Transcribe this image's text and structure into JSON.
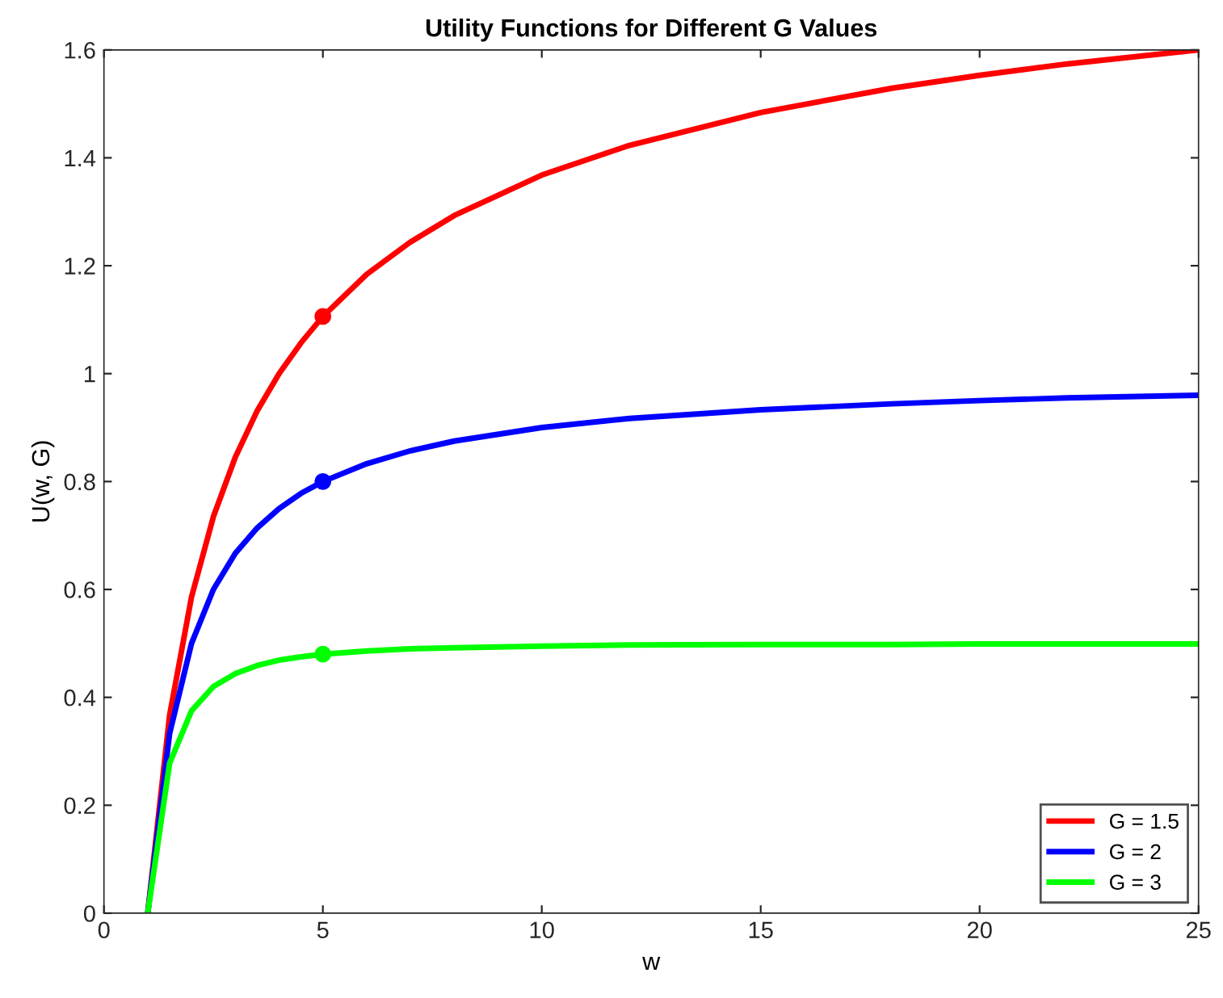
{
  "chart_data": {
    "type": "line",
    "title": "Utility Functions for Different G Values",
    "xlabel": "w",
    "ylabel": "U(w, G)",
    "x": [
      1,
      1.5,
      2,
      2.5,
      3,
      3.5,
      4,
      4.5,
      5,
      6,
      7,
      8,
      10,
      12,
      15,
      18,
      20,
      22,
      25
    ],
    "series": [
      {
        "name": "G = 1.5",
        "color": "#ff0000",
        "values": [
          0,
          0.367,
          0.586,
          0.735,
          0.845,
          0.931,
          1.0,
          1.057,
          1.106,
          1.184,
          1.244,
          1.293,
          1.368,
          1.423,
          1.484,
          1.529,
          1.553,
          1.574,
          1.6
        ]
      },
      {
        "name": "G = 2",
        "color": "#0000ff",
        "values": [
          0,
          0.333,
          0.5,
          0.6,
          0.667,
          0.714,
          0.75,
          0.778,
          0.8,
          0.833,
          0.857,
          0.875,
          0.9,
          0.917,
          0.933,
          0.944,
          0.95,
          0.955,
          0.96
        ]
      },
      {
        "name": "G = 3",
        "color": "#00ff00",
        "values": [
          0,
          0.278,
          0.375,
          0.42,
          0.444,
          0.459,
          0.469,
          0.475,
          0.48,
          0.486,
          0.49,
          0.492,
          0.495,
          0.497,
          0.498,
          0.498,
          0.499,
          0.499,
          0.499
        ]
      },
      {
        "type": "scatter",
        "marker": "circle",
        "color": "#ff0000",
        "values": [
          null,
          null,
          null,
          null,
          null,
          null,
          null,
          null,
          1.106,
          null,
          null,
          null,
          null,
          null,
          null,
          null,
          null,
          null,
          null
        ]
      },
      {
        "type": "scatter",
        "marker": "circle",
        "color": "#0000ff",
        "values": [
          null,
          null,
          null,
          null,
          null,
          null,
          null,
          null,
          0.8,
          null,
          null,
          null,
          null,
          null,
          null,
          null,
          null,
          null,
          null
        ]
      },
      {
        "type": "scatter",
        "marker": "circle",
        "color": "#00ff00",
        "values": [
          null,
          null,
          null,
          null,
          null,
          null,
          null,
          null,
          0.48,
          null,
          null,
          null,
          null,
          null,
          null,
          null,
          null,
          null,
          null
        ]
      }
    ],
    "xlim": [
      0,
      25
    ],
    "xticks": [
      0,
      5,
      10,
      15,
      20,
      25
    ],
    "ylim": [
      0,
      1.6
    ],
    "yticks": [
      0,
      0.2,
      0.4,
      0.6,
      0.8,
      1,
      1.2,
      1.4,
      1.6
    ],
    "grid": false,
    "legend": "bottom right",
    "line_style": "solid"
  }
}
